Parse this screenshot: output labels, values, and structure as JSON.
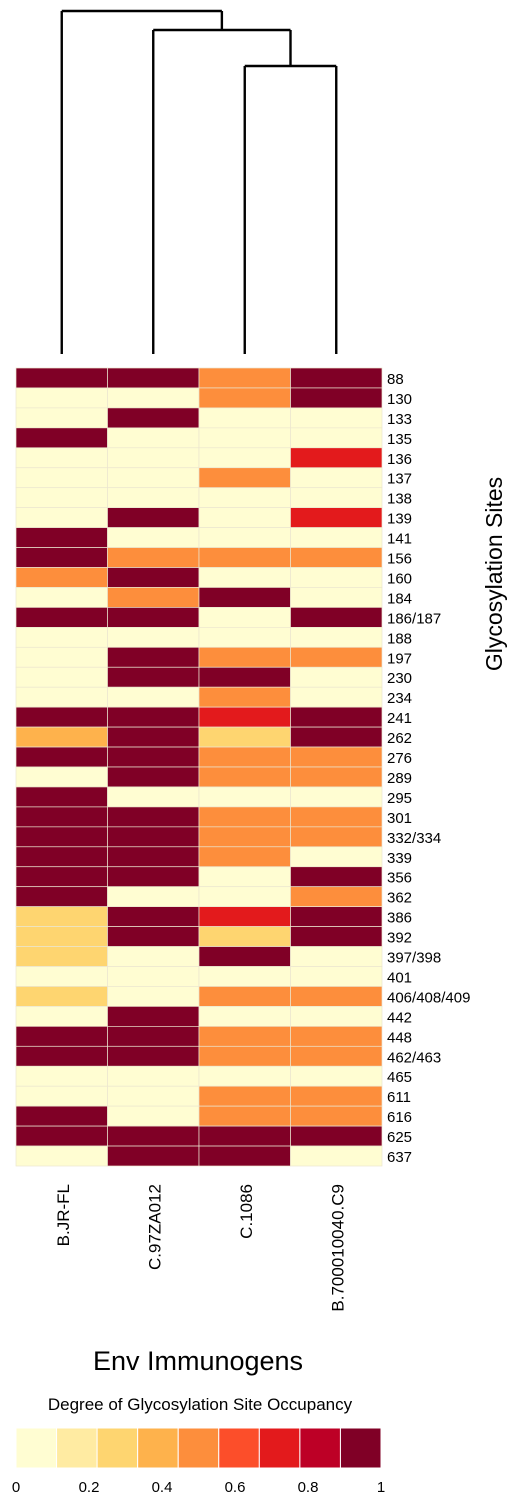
{
  "chart_data": {
    "type": "heatmap",
    "xlabel": "Env Immunogens",
    "ylabel": "Glycosylation Sites",
    "columns": [
      "B.JR-FL",
      "C.97ZA012",
      "C.1086",
      "B.700010040.C9"
    ],
    "rows": [
      "88",
      "130",
      "133",
      "135",
      "136",
      "137",
      "138",
      "139",
      "141",
      "156",
      "160",
      "184",
      "186/187",
      "188",
      "197",
      "230",
      "234",
      "241",
      "262",
      "276",
      "289",
      "295",
      "301",
      "332/334",
      "339",
      "356",
      "362",
      "386",
      "392",
      "397/398",
      "401",
      "406/408/409",
      "442",
      "448",
      "462/463",
      "465",
      "611",
      "616",
      "625",
      "637"
    ],
    "values": [
      [
        1,
        1,
        0.5,
        1
      ],
      [
        0,
        0,
        0.5,
        1
      ],
      [
        0,
        1,
        0,
        0
      ],
      [
        1,
        0,
        0,
        0
      ],
      [
        0,
        0,
        0,
        0.75
      ],
      [
        0,
        0,
        0.5,
        0
      ],
      [
        0,
        0,
        0,
        0
      ],
      [
        0,
        1,
        0,
        0.75
      ],
      [
        1,
        0,
        0,
        0
      ],
      [
        1,
        0.5,
        0.5,
        0.5
      ],
      [
        0.5,
        1,
        0,
        0
      ],
      [
        0,
        0.5,
        1,
        0
      ],
      [
        1,
        1,
        0,
        1
      ],
      [
        0,
        0,
        0,
        0
      ],
      [
        0,
        1,
        0.5,
        0.5
      ],
      [
        0,
        1,
        1,
        0
      ],
      [
        0,
        0,
        0.5,
        0
      ],
      [
        1,
        1,
        0.75,
        1
      ],
      [
        0.4,
        1,
        0.25,
        1
      ],
      [
        1,
        1,
        0.5,
        0.5
      ],
      [
        0,
        1,
        0.5,
        0.5
      ],
      [
        1,
        0,
        0,
        0
      ],
      [
        1,
        1,
        0.5,
        0.5
      ],
      [
        1,
        1,
        0.5,
        0.5
      ],
      [
        1,
        1,
        0.5,
        0
      ],
      [
        1,
        1,
        0,
        1
      ],
      [
        1,
        0,
        0,
        0.5
      ],
      [
        0.25,
        1,
        0.75,
        1
      ],
      [
        0.25,
        1,
        0.25,
        1
      ],
      [
        0.25,
        0,
        1,
        0
      ],
      [
        0,
        0,
        0,
        0
      ],
      [
        0.25,
        0,
        0.5,
        0.5
      ],
      [
        0,
        1,
        0,
        0
      ],
      [
        1,
        1,
        0.5,
        0.5
      ],
      [
        1,
        1,
        0.5,
        0.5
      ],
      [
        0,
        0,
        0,
        0
      ],
      [
        0,
        0,
        0.5,
        0.5
      ],
      [
        1,
        0,
        0.5,
        0.5
      ],
      [
        1,
        1,
        1,
        1
      ],
      [
        0,
        1,
        1,
        0
      ]
    ],
    "legend": {
      "title": "Degree of Glycosylation Site Occupancy",
      "ticks": [
        "0",
        "0.2",
        "0.4",
        "0.6",
        "0.8",
        "1"
      ],
      "range": [
        0,
        1
      ]
    },
    "colors": [
      "#fffdd2",
      "#ffeba2",
      "#fed570",
      "#feb24c",
      "#fd8e3c",
      "#fc4e2a",
      "#e31a1c",
      "#bd0026",
      "#800026"
    ],
    "dendrogram": "((B.JR-FL),((C.97ZA012),(C.1086,B.700010040.C9)))"
  }
}
